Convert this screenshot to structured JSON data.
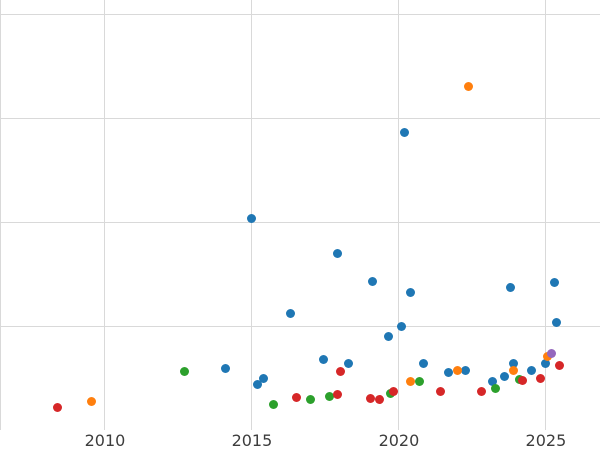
{
  "chart_data": {
    "type": "scatter",
    "title": "",
    "xlabel": "",
    "ylabel": "",
    "xlim": [
      2006.43,
      2026.84
    ],
    "ylim": [
      0,
      41.35
    ],
    "x_ticks": [
      {
        "value": 2010,
        "label": "2010"
      },
      {
        "value": 2015,
        "label": "2015"
      },
      {
        "value": 2020,
        "label": "2020"
      },
      {
        "value": 2025,
        "label": "2025"
      }
    ],
    "y_gridlines": [
      10,
      20,
      30,
      40
    ],
    "grid": true,
    "legend": "none",
    "marker_size": 9,
    "series": [
      {
        "name": "series-blue",
        "color": "#1f77b4",
        "points": [
          [
            2014.1,
            5.9
          ],
          [
            2015.0,
            20.3
          ],
          [
            2015.2,
            4.4
          ],
          [
            2015.4,
            5.0
          ],
          [
            2016.3,
            11.2
          ],
          [
            2017.45,
            6.8
          ],
          [
            2017.9,
            17.0
          ],
          [
            2018.3,
            6.4
          ],
          [
            2019.1,
            14.3
          ],
          [
            2019.65,
            9.0
          ],
          [
            2020.1,
            10.0
          ],
          [
            2020.2,
            28.6
          ],
          [
            2020.4,
            13.2
          ],
          [
            2020.85,
            6.4
          ],
          [
            2021.7,
            5.5
          ],
          [
            2022.25,
            5.7
          ],
          [
            2023.2,
            4.7
          ],
          [
            2023.6,
            5.1
          ],
          [
            2023.8,
            13.7
          ],
          [
            2023.9,
            6.4
          ],
          [
            2024.5,
            5.7
          ],
          [
            2025.0,
            6.4
          ],
          [
            2025.3,
            14.2
          ],
          [
            2025.35,
            10.3
          ]
        ]
      },
      {
        "name": "series-orange",
        "color": "#ff7f0e",
        "points": [
          [
            2009.55,
            2.7
          ],
          [
            2020.4,
            4.7
          ],
          [
            2022.0,
            5.7
          ],
          [
            2022.35,
            33.0
          ],
          [
            2023.9,
            5.7
          ],
          [
            2025.05,
            7.1
          ]
        ]
      },
      {
        "name": "series-green",
        "color": "#2ca02c",
        "points": [
          [
            2012.7,
            5.6
          ],
          [
            2015.75,
            2.5
          ],
          [
            2017.0,
            2.9
          ],
          [
            2017.65,
            3.2
          ],
          [
            2019.7,
            3.5
          ],
          [
            2020.7,
            4.7
          ],
          [
            2023.3,
            4.0
          ],
          [
            2024.1,
            4.9
          ]
        ]
      },
      {
        "name": "series-red",
        "color": "#d62728",
        "points": [
          [
            2008.37,
            2.2
          ],
          [
            2016.5,
            3.1
          ],
          [
            2017.9,
            3.4
          ],
          [
            2018.0,
            5.6
          ],
          [
            2019.05,
            3.0
          ],
          [
            2019.35,
            2.9
          ],
          [
            2019.8,
            3.7
          ],
          [
            2021.4,
            3.7
          ],
          [
            2022.8,
            3.7
          ],
          [
            2024.2,
            4.8
          ],
          [
            2024.8,
            5.0
          ],
          [
            2025.45,
            6.2
          ]
        ]
      },
      {
        "name": "series-purple",
        "color": "#9467bd",
        "points": [
          [
            2025.2,
            7.4
          ]
        ]
      }
    ]
  },
  "colors": {
    "background": "#ffffff",
    "grid": "#d9d9d9",
    "tick_label": "#3d3d3d"
  }
}
